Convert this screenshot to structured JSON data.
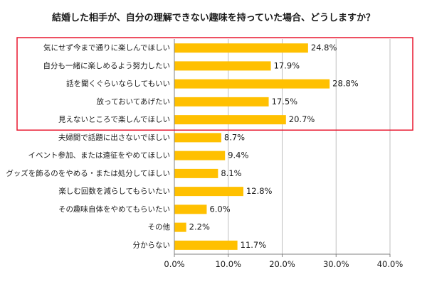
{
  "chart_data": {
    "type": "bar",
    "orientation": "horizontal",
    "title": "結婚した相手が、自分の理解できない趣味を持っていた場合、どうしますか？",
    "categories": [
      "気にせず今まで通りに楽しんでほしい",
      "自分も一緒に楽しめるよう努力したい",
      "話を聞くぐらいならしてもいい",
      "放っておいてあげたい",
      "見えないところで楽しんでほしい",
      "夫婦間で話題に出さないでほしい",
      "イベント参加、または遠征をやめてほしい",
      "グッズを飾るのをやめる・または処分してほしい",
      "楽しむ回数を減らしてもらいたい",
      "その趣味自体をやめてもらいたい",
      "その他",
      "分からない"
    ],
    "values": [
      24.8,
      17.9,
      28.8,
      17.5,
      20.7,
      8.7,
      9.4,
      8.1,
      12.8,
      6.0,
      2.2,
      11.7
    ],
    "value_labels": [
      "24.8%",
      "17.9%",
      "28.8%",
      "17.5%",
      "20.7%",
      "8.7%",
      "9.4%",
      "8.1%",
      "12.8%",
      "6.0%",
      "2.2%",
      "11.7%"
    ],
    "xlim": [
      0,
      40
    ],
    "x_ticks": [
      0,
      10,
      20,
      30,
      40
    ],
    "x_tick_labels": [
      "0.0%",
      "10.0%",
      "20.0%",
      "30.0%",
      "40.0%"
    ],
    "highlighted_categories": [
      0,
      1,
      2,
      3,
      4
    ],
    "grid": true,
    "colors": {
      "bar": "#FFC000",
      "highlight_box": "#E8162E",
      "grid": "#BFBFBF",
      "axis": "#808080",
      "text": "#1a1a1a"
    }
  }
}
